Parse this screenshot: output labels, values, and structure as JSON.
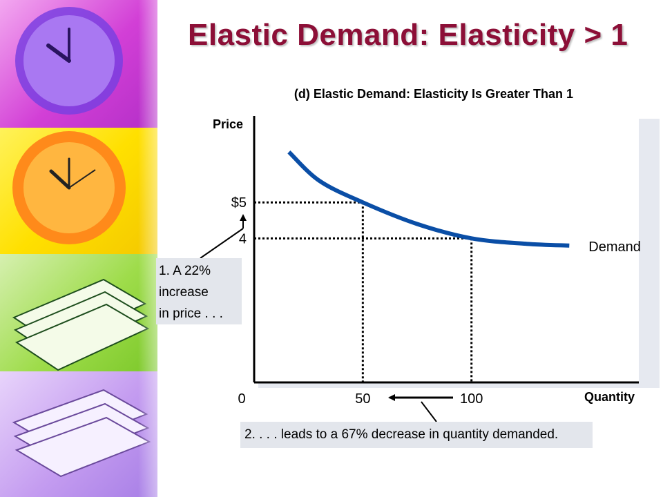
{
  "slide": {
    "title": "Elastic Demand: Elasticity > 1"
  },
  "chart_data": {
    "type": "line",
    "title": "(d) Elastic Demand: Elasticity Is Greater Than 1",
    "xlabel": "Quantity",
    "ylabel": "Price",
    "origin_label": "0",
    "x_ticks": [
      {
        "value": 50,
        "label": "50"
      },
      {
        "value": 100,
        "label": "100"
      }
    ],
    "y_ticks": [
      {
        "value": 5,
        "label": "$5"
      },
      {
        "value": 4,
        "label": "4"
      }
    ],
    "series": [
      {
        "name": "Demand",
        "color": "#0a4ea6",
        "x": [
          16,
          30,
          50,
          75,
          100,
          125,
          145
        ],
        "y": [
          6.4,
          5.6,
          5.0,
          4.4,
          4.0,
          3.85,
          3.8
        ]
      }
    ],
    "reference_points": [
      {
        "x": 50,
        "y": 5
      },
      {
        "x": 100,
        "y": 4
      }
    ],
    "xlim": [
      0,
      177
    ],
    "ylim": [
      0,
      7.4
    ],
    "grid": false
  },
  "callouts": {
    "price_increase": [
      "1. A 22%",
      "increase",
      "in price . . ."
    ],
    "quantity_decrease": "2. . . . leads to a 67% decrease in quantity demanded."
  },
  "colors": {
    "title": "#8c0f37",
    "demand_curve": "#0a4ea6",
    "callout_bg": "#e3e6ec",
    "plot_shadow": "#e6e9f0"
  }
}
